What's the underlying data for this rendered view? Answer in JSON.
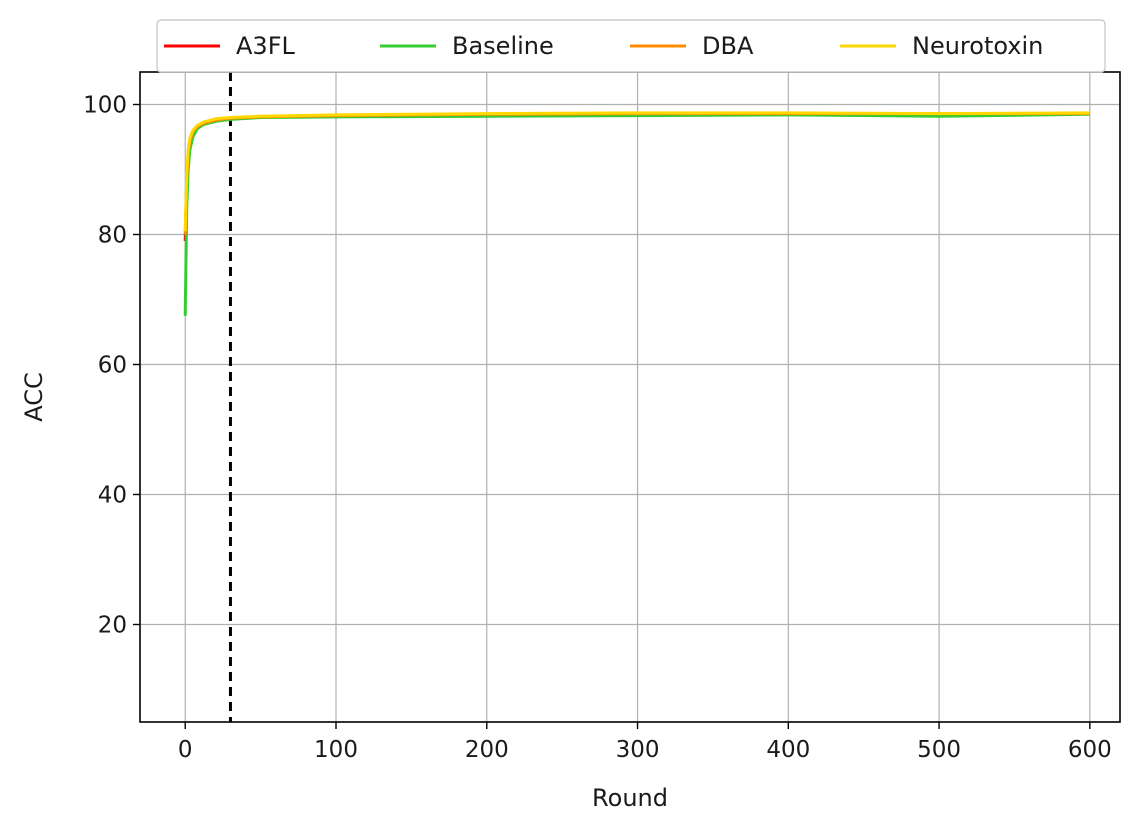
{
  "chart_data": {
    "type": "line",
    "title": "",
    "xlabel": "Round",
    "ylabel": "ACC",
    "xlim": [
      -30,
      620
    ],
    "ylim": [
      5,
      105
    ],
    "xticks": [
      0,
      100,
      200,
      300,
      400,
      500,
      600
    ],
    "yticks": [
      20,
      40,
      60,
      80,
      100
    ],
    "grid": true,
    "legend_position": "top",
    "vline": {
      "x": 30,
      "style": "dashed",
      "color": "#000000"
    },
    "series": [
      {
        "name": "A3FL",
        "color": "#ff0000",
        "x": [
          0,
          1,
          2,
          3,
          5,
          8,
          12,
          20,
          30,
          50,
          100,
          200,
          300,
          400,
          500,
          600
        ],
        "y": [
          79,
          88,
          92,
          94,
          95.5,
          96.5,
          97,
          97.6,
          97.8,
          98.1,
          98.3,
          98.5,
          98.6,
          98.6,
          98.5,
          98.6
        ]
      },
      {
        "name": "Baseline",
        "color": "#33cc33",
        "x": [
          0,
          1,
          2,
          3,
          5,
          8,
          12,
          20,
          30,
          50,
          100,
          200,
          300,
          400,
          500,
          600
        ],
        "y": [
          67.5,
          84,
          90,
          93,
          95,
          96.3,
          96.9,
          97.4,
          97.7,
          98,
          98.1,
          98.2,
          98.3,
          98.4,
          98.2,
          98.5
        ]
      },
      {
        "name": "DBA",
        "color": "#ff8c00",
        "x": [
          0,
          1,
          2,
          3,
          5,
          8,
          12,
          20,
          30,
          50,
          100,
          200,
          300,
          400,
          500,
          600
        ],
        "y": [
          80,
          88.5,
          92.5,
          94.3,
          95.8,
          96.6,
          97.1,
          97.6,
          97.9,
          98.1,
          98.3,
          98.5,
          98.6,
          98.6,
          98.6,
          98.6
        ]
      },
      {
        "name": "Neurotoxin",
        "color": "#ffd700",
        "x": [
          0,
          1,
          2,
          3,
          5,
          8,
          12,
          20,
          30,
          50,
          100,
          200,
          300,
          400,
          500,
          600
        ],
        "y": [
          80.5,
          89,
          93,
          94.8,
          96,
          96.8,
          97.3,
          97.8,
          98,
          98.2,
          98.4,
          98.6,
          98.7,
          98.7,
          98.6,
          98.7
        ]
      }
    ]
  }
}
